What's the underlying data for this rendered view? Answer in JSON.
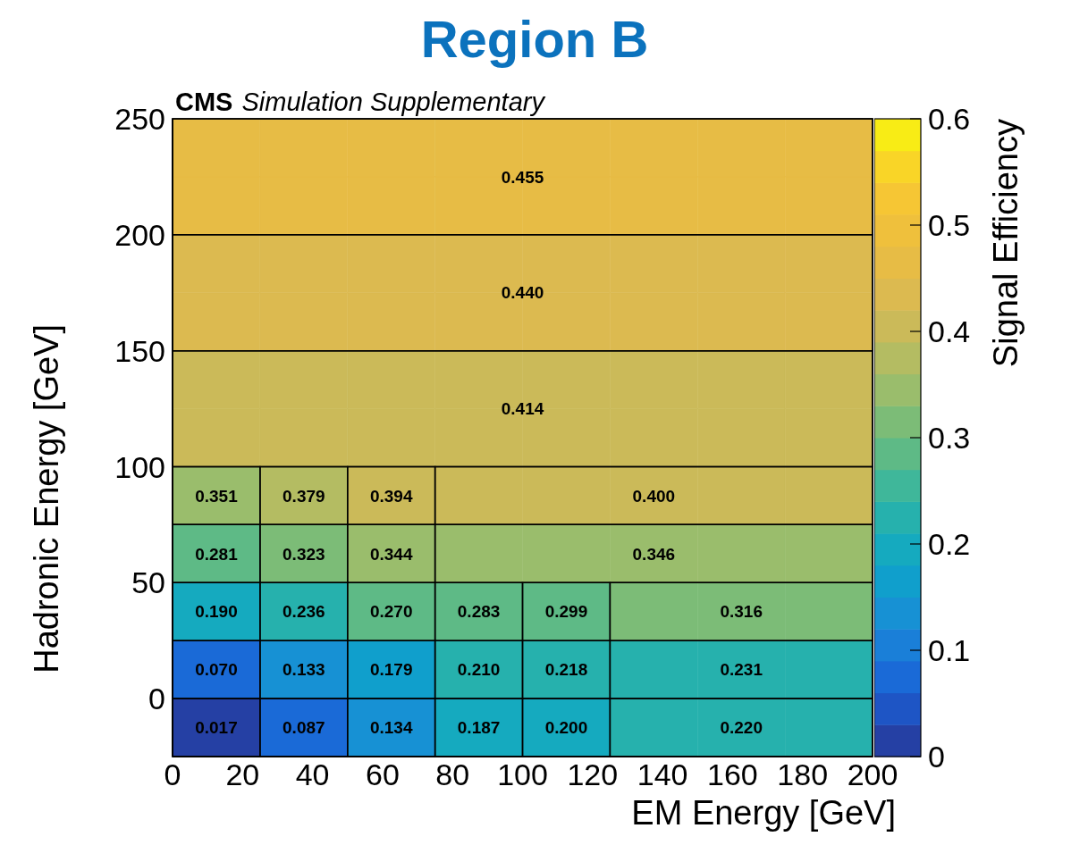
{
  "chart_data": {
    "type": "heatmap",
    "title": "Region B",
    "annotations": [
      "CMS",
      "Simulation Supplementary"
    ],
    "xlabel": "EM Energy [GeV]",
    "ylabel": "Hadronic Energy [GeV]",
    "clabel": "Signal Efficiency",
    "cells": [
      [
        0.455,
        0.455,
        0.455,
        0.455,
        0.455,
        0.455,
        0.455,
        0.455
      ],
      [
        0.455,
        0.455,
        0.455,
        0.455,
        0.455,
        0.455,
        0.455,
        0.455
      ],
      [
        0.44,
        0.44,
        0.44,
        0.44,
        0.44,
        0.44,
        0.44,
        0.44
      ],
      [
        0.44,
        0.44,
        0.44,
        0.44,
        0.44,
        0.44,
        0.44,
        0.44
      ],
      [
        0.414,
        0.414,
        0.414,
        0.414,
        0.414,
        0.414,
        0.414,
        0.414
      ],
      [
        0.414,
        0.414,
        0.414,
        0.414,
        0.414,
        0.414,
        0.414,
        0.414
      ],
      [
        0.351,
        0.379,
        0.394,
        0.4,
        0.4,
        0.4,
        0.4,
        0.4
      ],
      [
        0.281,
        0.323,
        0.344,
        0.346,
        0.346,
        0.346,
        0.346,
        0.346
      ],
      [
        0.19,
        0.236,
        0.27,
        0.283,
        0.299,
        0.316,
        0.316,
        0.316
      ],
      [
        0.07,
        0.133,
        0.179,
        0.21,
        0.218,
        0.231,
        0.231,
        0.231
      ],
      [
        0.017,
        0.087,
        0.134,
        0.187,
        0.2,
        0.22,
        0.22,
        0.22
      ]
    ],
    "cell_labels": [
      [
        null,
        null,
        null,
        null,
        null,
        null,
        null,
        null
      ],
      [
        null,
        null,
        null,
        null,
        "0.455",
        null,
        null,
        null
      ],
      [
        null,
        null,
        null,
        null,
        null,
        null,
        null,
        null
      ],
      [
        null,
        null,
        null,
        null,
        "0.440",
        null,
        null,
        null
      ],
      [
        null,
        null,
        null,
        null,
        null,
        null,
        null,
        null
      ],
      [
        null,
        null,
        null,
        null,
        "0.414",
        null,
        null,
        null
      ],
      [
        "0.351",
        "0.379",
        "0.394",
        null,
        null,
        "0.400",
        null,
        null
      ],
      [
        "0.281",
        "0.323",
        "0.344",
        null,
        null,
        "0.346",
        null,
        null
      ],
      [
        "0.190",
        "0.236",
        "0.270",
        "0.283",
        "0.299",
        null,
        "0.316",
        null
      ],
      [
        "0.070",
        "0.133",
        "0.179",
        "0.210",
        "0.218",
        null,
        "0.231",
        null
      ],
      [
        "0.017",
        "0.087",
        "0.134",
        "0.187",
        "0.200",
        null,
        "0.220",
        null
      ]
    ],
    "xlim": [
      0,
      200
    ],
    "xticks": [
      0,
      20,
      40,
      60,
      80,
      100,
      120,
      140,
      160,
      180,
      200
    ],
    "ylim": [
      -25,
      250
    ],
    "yticks": [
      0,
      50,
      100,
      150,
      200,
      250
    ],
    "clim": [
      0,
      0.6
    ],
    "cticks": [
      0,
      0.1,
      0.2,
      0.3,
      0.4,
      0.5,
      0.6
    ]
  }
}
